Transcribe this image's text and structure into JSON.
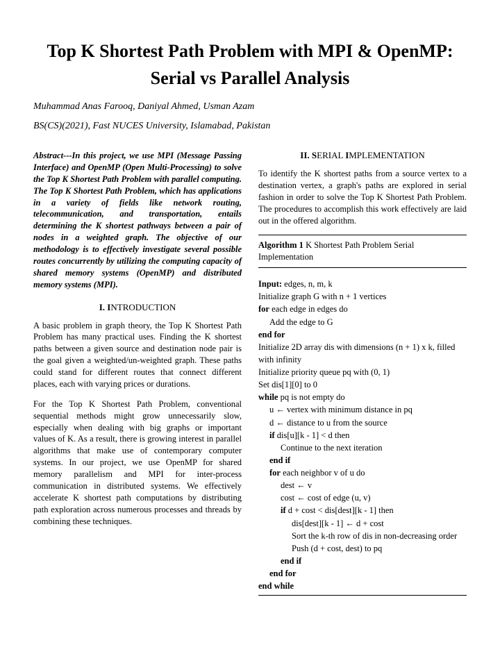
{
  "title_line1": "Top K Shortest Path Problem with MPI & OpenMP:",
  "title_line2": "Serial vs Parallel Analysis",
  "authors": "Muhammad Anas Farooq, Daniyal Ahmed, Usman Azam",
  "affiliation": "BS(CS)(2021), Fast NUCES University, Islamabad, Pakistan",
  "abstract": "Abstract---In this project, we use MPI (Message Passing Interface) and OpenMP (Open Multi-Processing) to solve the Top K Shortest Path Problem with parallel computing. The Top K Shortest Path Problem, which has applications in a variety of fields like network routing, telecommunication, and transportation, entails determining the K shortest pathways between a pair of nodes in a weighted graph. The objective of our methodology is to effectively investigate several possible routes concurrently by utilizing the computing capacity of shared memory systems (OpenMP) and distributed memory systems (MPI).",
  "s1_num": "I. ",
  "s1_word_first": "I",
  "s1_word_rest": "NTRODUCTION",
  "s1_p1": "A basic problem in graph theory, the Top K Shortest Path Problem has many practical uses. Finding the K shortest paths between a given source and destination node pair is the goal given a weighted/un-weighted graph. These paths could stand for different routes that connect different places, each with varying prices or durations.",
  "s1_p2": "For the Top K Shortest Path Problem, conventional sequential methods might grow unnecessarily slow, especially when dealing with big graphs or important values of K. As a result, there is growing interest in parallel algorithms that make use of contemporary computer systems. In our project, we use OpenMP for shared memory parallelism and MPI for inter-process communication in distributed systems. We effectively accelerate K shortest path computations by distributing path exploration across numerous processes and threads by combining these techniques.",
  "s2_num": "II. ",
  "s2_word_first": "S",
  "s2_word_rest": "ERIAL ",
  "s2_word2_first": "I",
  "s2_word2_rest": "MPLEMENTATION",
  "s2_p1": "To identify the K shortest paths from a source vertex to a destination vertex, a graph's paths are explored in serial fashion in order to solve the Top K Shortest Path Problem. The procedures to accomplish this work effectively are laid out in the offered algorithm.",
  "algo_label": "Algorithm 1",
  "algo_desc": " K Shortest Path Problem Serial Implementation",
  "a": {
    "input_kw": "Input:",
    "input_rest": " edges, n, m, k",
    "l2": "Initialize graph G with n + 1 vertices",
    "for1": "for",
    "l3": " each edge in edges do",
    "l4": "Add the edge to G",
    "endfor": "end for",
    "l6": "Initialize 2D array dis with dimensions (n + 1) x k, filled with infinity",
    "l7": "Initialize priority queue pq with (0, 1)",
    "l8": "Set dis[1][0] to 0",
    "while": "while",
    "l9": " pq is not empty do",
    "l10": "u ← vertex with minimum distance in pq",
    "l11": "d ← distance to u from the source",
    "if": "if",
    "l12": " dis[u][k - 1] < d then",
    "l13": "Continue to the next iteration",
    "endif": "end if",
    "l15": " each neighbor v of u do",
    "l16": "dest ← v",
    "l17": "cost ← cost of edge (u, v)",
    "l18": " d + cost < dis[dest][k - 1] then",
    "l19": "dis[dest][k - 1] ← d + cost",
    "l20": "Sort the k-th row of dis in non-decreasing order",
    "l21": "Push (d + cost, dest) to pq",
    "endwhile": "end while"
  }
}
